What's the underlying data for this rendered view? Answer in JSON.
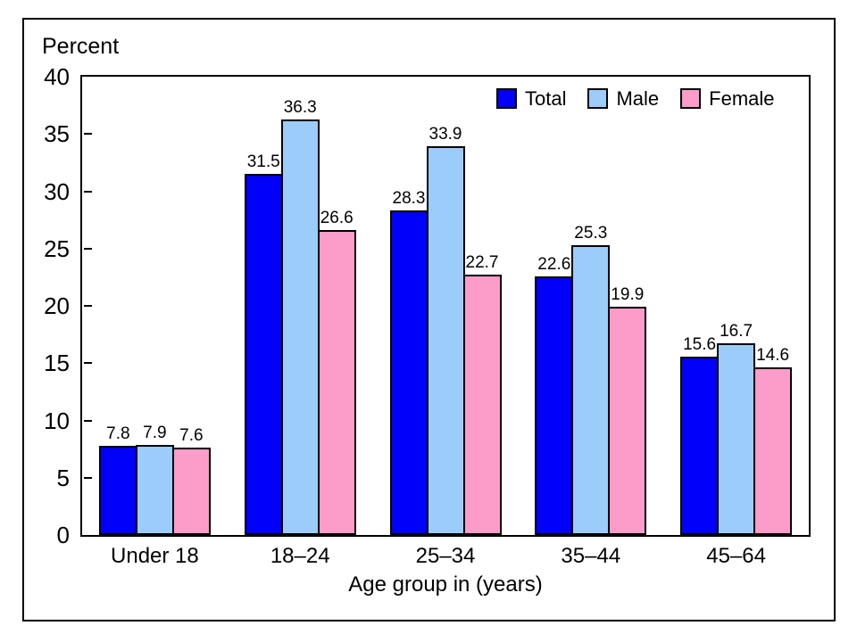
{
  "figure": {
    "border_color": "#000000",
    "background_color": "#ffffff"
  },
  "chart_data": {
    "type": "bar",
    "title": "",
    "ylabel": "Percent",
    "xlabel": "Age group in (years)",
    "categories": [
      "Under 18",
      "18–24",
      "25–34",
      "35–44",
      "45–64"
    ],
    "series": [
      {
        "name": "Total",
        "color": "#0000fb",
        "values": [
          7.8,
          31.5,
          28.3,
          22.6,
          15.6
        ]
      },
      {
        "name": "Male",
        "color": "#9ccdfa",
        "values": [
          7.9,
          36.3,
          33.9,
          25.3,
          16.7
        ]
      },
      {
        "name": "Female",
        "color": "#fc9cc9",
        "values": [
          7.6,
          26.6,
          22.7,
          19.9,
          14.6
        ]
      }
    ],
    "ylim": [
      0,
      40
    ],
    "yticks": [
      0,
      5,
      10,
      15,
      20,
      25,
      30,
      35,
      40
    ],
    "bar_labels": true,
    "grid": false,
    "legend_position": "top-right"
  }
}
